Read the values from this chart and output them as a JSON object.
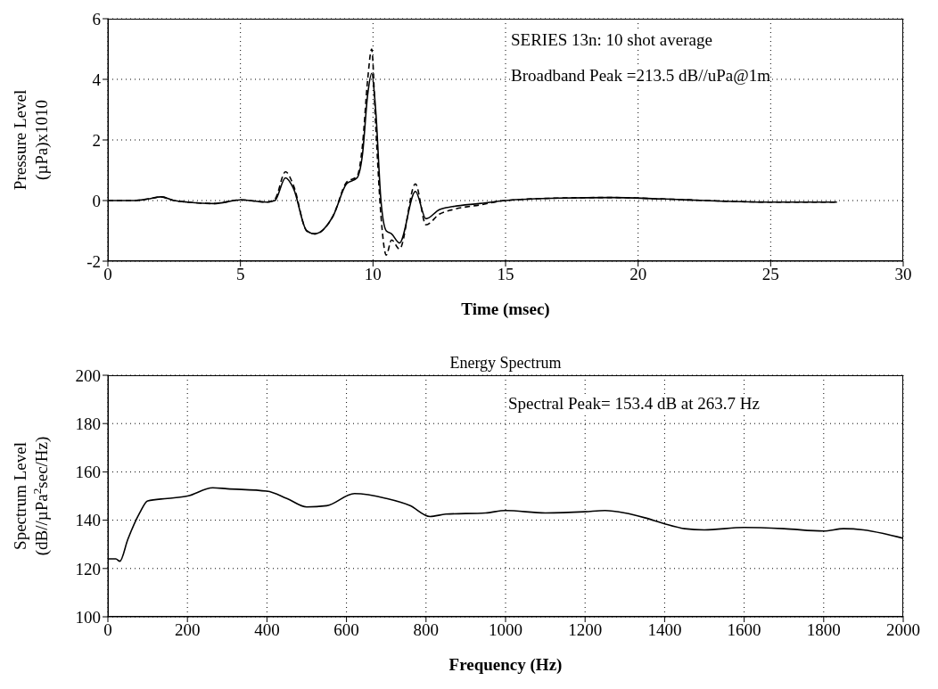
{
  "chart_data": [
    {
      "type": "line",
      "xlabel": "Time (msec)",
      "ylabel": "Pressure Level\n(µPa)x1010",
      "xlim": [
        0,
        30
      ],
      "xticks": [
        0,
        5,
        10,
        15,
        20,
        25,
        30
      ],
      "ylim": [
        -2,
        6
      ],
      "yticks": [
        -2,
        0,
        2,
        4,
        6
      ],
      "grid": true,
      "marker": "none",
      "annotations": [
        "SERIES 13n: 10 shot average",
        "Broadband Peak =213.5 dB//uPa@1m"
      ],
      "series": [
        {
          "color": "#000000",
          "line_style": "dashed",
          "x": [
            0,
            1,
            1.5,
            2,
            2.5,
            3,
            4,
            5,
            6,
            6.3,
            6.7,
            7,
            7.5,
            7.8,
            8.5,
            9,
            9.4,
            9.6,
            9.8,
            9.95,
            10.1,
            10.3,
            10.5,
            10.7,
            11,
            11.6,
            12,
            12.5,
            13,
            14,
            15,
            17,
            19,
            21,
            25,
            27.5
          ],
          "values": [
            0,
            0,
            0.05,
            0.12,
            0,
            -0.05,
            -0.1,
            0.02,
            -0.05,
            0.05,
            0.95,
            0.5,
            -1.0,
            -1.1,
            -0.5,
            0.6,
            0.8,
            1.8,
            4.0,
            5.0,
            2.5,
            -0.5,
            -1.8,
            -1.3,
            -1.6,
            0.55,
            -0.8,
            -0.45,
            -0.3,
            -0.15,
            0,
            0.08,
            0.1,
            0.05,
            -0.05,
            -0.05
          ]
        },
        {
          "color": "#000000",
          "line_style": "solid",
          "x": [
            0,
            1,
            1.5,
            2,
            2.5,
            3,
            4,
            5,
            6,
            6.3,
            6.7,
            7,
            7.5,
            7.8,
            8.5,
            9,
            9.4,
            9.6,
            9.8,
            9.95,
            10.1,
            10.3,
            10.5,
            10.7,
            11,
            11.6,
            12,
            12.5,
            13,
            14,
            15,
            17,
            19,
            21,
            25,
            27.5
          ],
          "values": [
            0,
            0,
            0.05,
            0.12,
            0,
            -0.05,
            -0.1,
            0.02,
            -0.05,
            0,
            0.75,
            0.4,
            -1.0,
            -1.1,
            -0.5,
            0.55,
            0.75,
            1.5,
            3.5,
            4.2,
            3.0,
            0,
            -1.0,
            -1.1,
            -1.4,
            0.3,
            -0.6,
            -0.3,
            -0.2,
            -0.1,
            0,
            0.08,
            0.1,
            0.05,
            -0.05,
            -0.05
          ]
        }
      ]
    },
    {
      "type": "line",
      "title": "Energy Spectrum",
      "xlabel": "Frequency (Hz)",
      "ylabel": "Spectrum Level\n(dB//µPa$^{2}$sec/Hz)",
      "xlim": [
        0,
        2000
      ],
      "xticks": [
        0,
        200,
        400,
        600,
        800,
        1000,
        1200,
        1400,
        1600,
        1800,
        2000
      ],
      "ylim": [
        100,
        200
      ],
      "yticks": [
        100,
        120,
        140,
        160,
        180,
        200
      ],
      "grid": true,
      "marker": "none",
      "annotations": [
        "Spectral Peak= 153.4 dB at 263.7 Hz"
      ],
      "series": [
        {
          "color": "#000000",
          "line_style": "solid",
          "x": [
            0,
            20,
            30,
            50,
            80,
            100,
            150,
            200,
            263.7,
            300,
            400,
            450,
            500,
            550,
            620,
            700,
            760,
            810,
            850,
            950,
            1000,
            1100,
            1200,
            1250,
            1300,
            1350,
            1400,
            1450,
            1500,
            1600,
            1700,
            1800,
            1850,
            1900,
            1950,
            2000
          ],
          "values": [
            124,
            124,
            123,
            132,
            143,
            148,
            149,
            150,
            153.4,
            153,
            152,
            149,
            145.5,
            146,
            151,
            149,
            146,
            141.5,
            142.5,
            143,
            144,
            143,
            143.5,
            144,
            143,
            141,
            138.5,
            136.5,
            136,
            137,
            136.5,
            135.5,
            136.5,
            136,
            134.5,
            132.5
          ]
        }
      ]
    }
  ]
}
